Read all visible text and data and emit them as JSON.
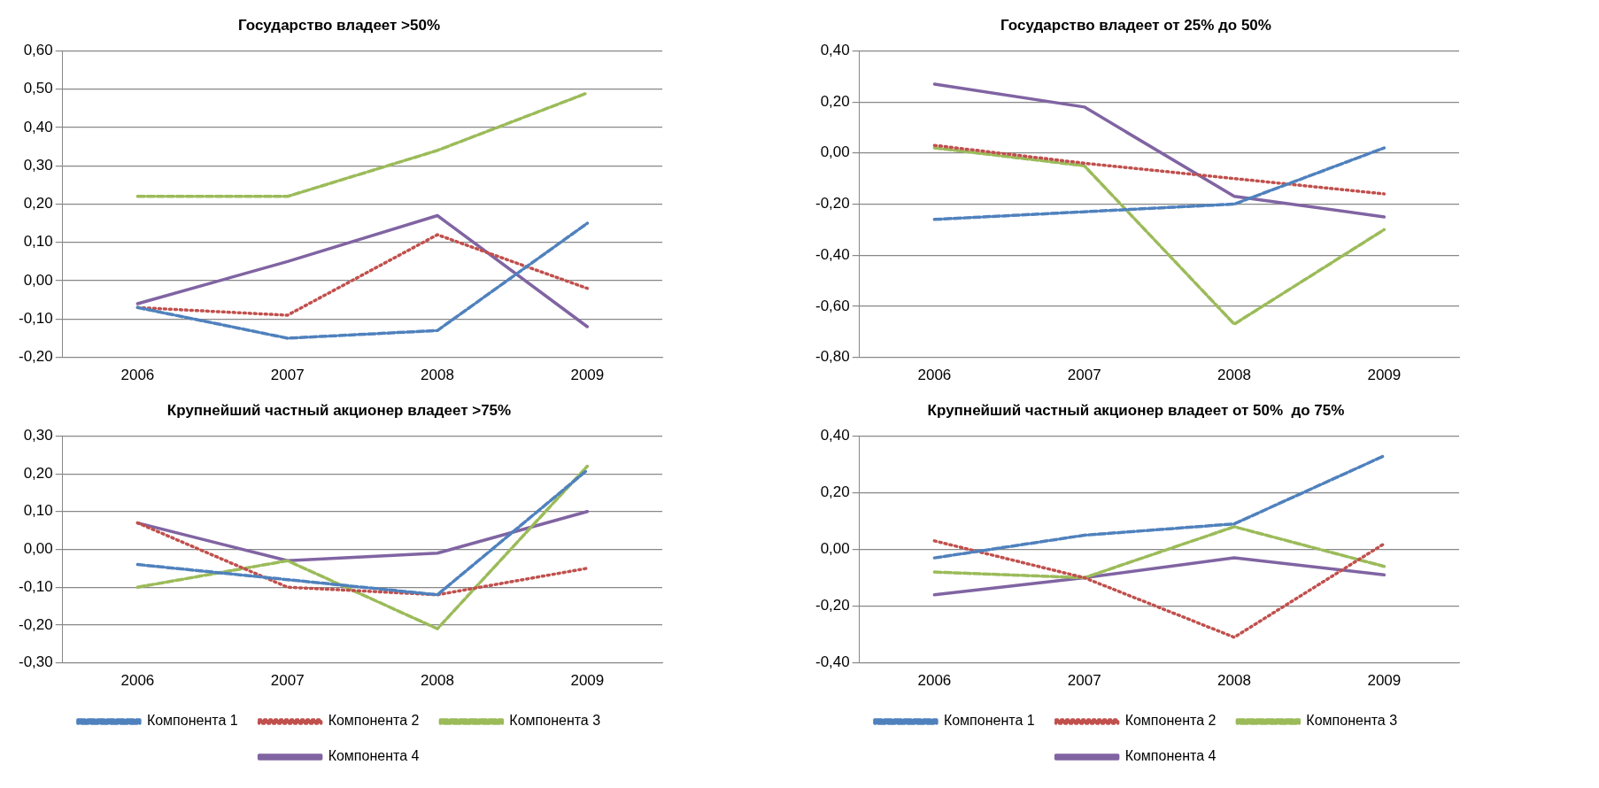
{
  "chart_data": [
    {
      "type": "line",
      "title": "Государство владеет >50%",
      "categories": [
        "2006",
        "2007",
        "2008",
        "2009"
      ],
      "ylim": [
        -0.2,
        0.6
      ],
      "yticks": [
        {
          "value": -0.2,
          "label": "-0,20"
        },
        {
          "value": -0.1,
          "label": "-0,10"
        },
        {
          "value": 0,
          "label": "0,00"
        },
        {
          "value": 0.1,
          "label": "0,10"
        },
        {
          "value": 0.2,
          "label": "0,20"
        },
        {
          "value": 0.3,
          "label": "0,30"
        },
        {
          "value": 0.4,
          "label": "0,40"
        },
        {
          "value": 0.5,
          "label": "0,50"
        },
        {
          "value": 0.6,
          "label": "0,60"
        }
      ],
      "grid": "y",
      "legend": false,
      "marker": "none",
      "series": [
        {
          "color": "#4f81bd",
          "line_style": "dashed",
          "values": [
            -0.07,
            -0.15,
            -0.13,
            0.15
          ]
        },
        {
          "color": "#c0504d",
          "line_style": "dotted",
          "values": [
            -0.07,
            -0.09,
            0.12,
            -0.02
          ]
        },
        {
          "color": "#9bbb59",
          "line_style": "dashed",
          "values": [
            0.22,
            0.22,
            0.34,
            0.49
          ]
        },
        {
          "color": "#8064a2",
          "line_style": "solid",
          "values": [
            -0.06,
            0.05,
            0.17,
            -0.12
          ]
        }
      ]
    },
    {
      "type": "line",
      "title": "Государство владеет от 25% до 50%",
      "categories": [
        "2006",
        "2007",
        "2008",
        "2009"
      ],
      "ylim": [
        -0.8,
        0.4
      ],
      "yticks": [
        {
          "value": -0.8,
          "label": "-0,80"
        },
        {
          "value": -0.6,
          "label": "-0,60"
        },
        {
          "value": -0.4,
          "label": "-0,40"
        },
        {
          "value": -0.2,
          "label": "-0,20"
        },
        {
          "value": 0,
          "label": "0,00"
        },
        {
          "value": 0.2,
          "label": "0,20"
        },
        {
          "value": 0.4,
          "label": "0,40"
        }
      ],
      "grid": "y",
      "legend": false,
      "marker": "none",
      "series": [
        {
          "color": "#4f81bd",
          "line_style": "dashed",
          "values": [
            -0.26,
            -0.23,
            -0.2,
            0.02
          ]
        },
        {
          "color": "#c0504d",
          "line_style": "dotted",
          "values": [
            0.03,
            -0.04,
            -0.1,
            -0.16
          ]
        },
        {
          "color": "#9bbb59",
          "line_style": "dashed",
          "values": [
            0.02,
            -0.05,
            -0.67,
            -0.3
          ]
        },
        {
          "color": "#8064a2",
          "line_style": "solid",
          "values": [
            0.27,
            0.18,
            -0.17,
            -0.25
          ]
        }
      ]
    },
    {
      "type": "line",
      "title": "Крупнейший частный акционер владеет >75%",
      "categories": [
        "2006",
        "2007",
        "2008",
        "2009"
      ],
      "ylim": [
        -0.3,
        0.3
      ],
      "yticks": [
        {
          "value": -0.3,
          "label": "-0,30"
        },
        {
          "value": -0.2,
          "label": "-0,20"
        },
        {
          "value": -0.1,
          "label": "-0,10"
        },
        {
          "value": 0,
          "label": "0,00"
        },
        {
          "value": 0.1,
          "label": "0,10"
        },
        {
          "value": 0.2,
          "label": "0,20"
        },
        {
          "value": 0.3,
          "label": "0,30"
        }
      ],
      "grid": "y",
      "legend": "bottom",
      "marker": "none",
      "series": [
        {
          "name": "Компонента 1",
          "color": "#4f81bd",
          "line_style": "dashed",
          "values": [
            -0.04,
            -0.08,
            -0.12,
            0.21
          ]
        },
        {
          "name": "Компонента 2",
          "color": "#c0504d",
          "line_style": "dotted",
          "values": [
            0.07,
            -0.1,
            -0.12,
            -0.05
          ]
        },
        {
          "name": "Компонента 3",
          "color": "#9bbb59",
          "line_style": "dashed",
          "values": [
            -0.1,
            -0.03,
            -0.21,
            0.22
          ]
        },
        {
          "name": "Компонента 4",
          "color": "#8064a2",
          "line_style": "solid",
          "values": [
            0.07,
            -0.03,
            -0.01,
            0.1
          ]
        }
      ]
    },
    {
      "type": "line",
      "title": "Крупнейший частный акционер владеет от 50%  до 75%",
      "categories": [
        "2006",
        "2007",
        "2008",
        "2009"
      ],
      "ylim": [
        -0.4,
        0.4
      ],
      "yticks": [
        {
          "value": -0.4,
          "label": "-0,40"
        },
        {
          "value": -0.2,
          "label": "-0,20"
        },
        {
          "value": 0,
          "label": "0,00"
        },
        {
          "value": 0.2,
          "label": "0,20"
        },
        {
          "value": 0.4,
          "label": "0,40"
        }
      ],
      "grid": "y",
      "legend": "bottom",
      "marker": "none",
      "series": [
        {
          "name": "Компонента 1",
          "color": "#4f81bd",
          "line_style": "dashed",
          "values": [
            -0.03,
            0.05,
            0.09,
            0.33
          ]
        },
        {
          "name": "Компонента 2",
          "color": "#c0504d",
          "line_style": "dotted",
          "values": [
            0.03,
            -0.1,
            -0.31,
            0.02
          ]
        },
        {
          "name": "Компонента 3",
          "color": "#9bbb59",
          "line_style": "dashed",
          "values": [
            -0.08,
            -0.1,
            0.08,
            -0.06
          ]
        },
        {
          "name": "Компонента 4",
          "color": "#8064a2",
          "line_style": "solid",
          "values": [
            -0.16,
            -0.1,
            -0.03,
            -0.09
          ]
        }
      ]
    }
  ]
}
